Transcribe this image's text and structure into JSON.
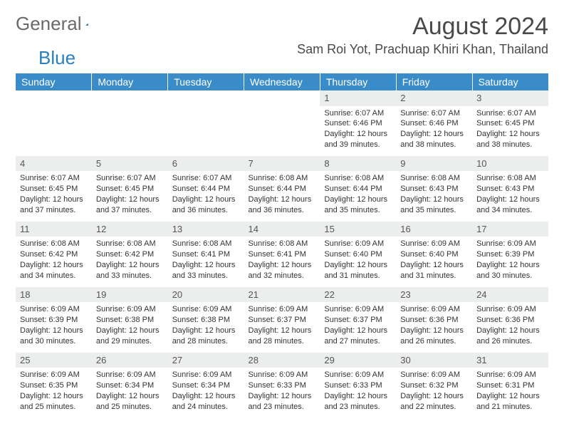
{
  "brand": {
    "part1": "General",
    "part2": "Blue",
    "text_color": "#6a6a6a",
    "accent_color": "#2a7fbf"
  },
  "title": "August 2024",
  "location": "Sam Roi Yot, Prachuap Khiri Khan, Thailand",
  "header_bg": "#3a8cc9",
  "daynum_bg": "#eceded",
  "weekdays": [
    "Sunday",
    "Monday",
    "Tuesday",
    "Wednesday",
    "Thursday",
    "Friday",
    "Saturday"
  ],
  "labels": {
    "sunrise": "Sunrise:",
    "sunset": "Sunset:",
    "daylight": "Daylight:"
  },
  "weeks": [
    [
      {
        "empty": true
      },
      {
        "empty": true
      },
      {
        "empty": true
      },
      {
        "empty": true
      },
      {
        "n": "1",
        "sunrise": "6:07 AM",
        "sunset": "6:46 PM",
        "daylight": "12 hours and 39 minutes."
      },
      {
        "n": "2",
        "sunrise": "6:07 AM",
        "sunset": "6:46 PM",
        "daylight": "12 hours and 38 minutes."
      },
      {
        "n": "3",
        "sunrise": "6:07 AM",
        "sunset": "6:45 PM",
        "daylight": "12 hours and 38 minutes."
      }
    ],
    [
      {
        "n": "4",
        "sunrise": "6:07 AM",
        "sunset": "6:45 PM",
        "daylight": "12 hours and 37 minutes."
      },
      {
        "n": "5",
        "sunrise": "6:07 AM",
        "sunset": "6:45 PM",
        "daylight": "12 hours and 37 minutes."
      },
      {
        "n": "6",
        "sunrise": "6:07 AM",
        "sunset": "6:44 PM",
        "daylight": "12 hours and 36 minutes."
      },
      {
        "n": "7",
        "sunrise": "6:08 AM",
        "sunset": "6:44 PM",
        "daylight": "12 hours and 36 minutes."
      },
      {
        "n": "8",
        "sunrise": "6:08 AM",
        "sunset": "6:44 PM",
        "daylight": "12 hours and 35 minutes."
      },
      {
        "n": "9",
        "sunrise": "6:08 AM",
        "sunset": "6:43 PM",
        "daylight": "12 hours and 35 minutes."
      },
      {
        "n": "10",
        "sunrise": "6:08 AM",
        "sunset": "6:43 PM",
        "daylight": "12 hours and 34 minutes."
      }
    ],
    [
      {
        "n": "11",
        "sunrise": "6:08 AM",
        "sunset": "6:42 PM",
        "daylight": "12 hours and 34 minutes."
      },
      {
        "n": "12",
        "sunrise": "6:08 AM",
        "sunset": "6:42 PM",
        "daylight": "12 hours and 33 minutes."
      },
      {
        "n": "13",
        "sunrise": "6:08 AM",
        "sunset": "6:41 PM",
        "daylight": "12 hours and 33 minutes."
      },
      {
        "n": "14",
        "sunrise": "6:08 AM",
        "sunset": "6:41 PM",
        "daylight": "12 hours and 32 minutes."
      },
      {
        "n": "15",
        "sunrise": "6:09 AM",
        "sunset": "6:40 PM",
        "daylight": "12 hours and 31 minutes."
      },
      {
        "n": "16",
        "sunrise": "6:09 AM",
        "sunset": "6:40 PM",
        "daylight": "12 hours and 31 minutes."
      },
      {
        "n": "17",
        "sunrise": "6:09 AM",
        "sunset": "6:39 PM",
        "daylight": "12 hours and 30 minutes."
      }
    ],
    [
      {
        "n": "18",
        "sunrise": "6:09 AM",
        "sunset": "6:39 PM",
        "daylight": "12 hours and 30 minutes."
      },
      {
        "n": "19",
        "sunrise": "6:09 AM",
        "sunset": "6:38 PM",
        "daylight": "12 hours and 29 minutes."
      },
      {
        "n": "20",
        "sunrise": "6:09 AM",
        "sunset": "6:38 PM",
        "daylight": "12 hours and 28 minutes."
      },
      {
        "n": "21",
        "sunrise": "6:09 AM",
        "sunset": "6:37 PM",
        "daylight": "12 hours and 28 minutes."
      },
      {
        "n": "22",
        "sunrise": "6:09 AM",
        "sunset": "6:37 PM",
        "daylight": "12 hours and 27 minutes."
      },
      {
        "n": "23",
        "sunrise": "6:09 AM",
        "sunset": "6:36 PM",
        "daylight": "12 hours and 26 minutes."
      },
      {
        "n": "24",
        "sunrise": "6:09 AM",
        "sunset": "6:36 PM",
        "daylight": "12 hours and 26 minutes."
      }
    ],
    [
      {
        "n": "25",
        "sunrise": "6:09 AM",
        "sunset": "6:35 PM",
        "daylight": "12 hours and 25 minutes."
      },
      {
        "n": "26",
        "sunrise": "6:09 AM",
        "sunset": "6:34 PM",
        "daylight": "12 hours and 25 minutes."
      },
      {
        "n": "27",
        "sunrise": "6:09 AM",
        "sunset": "6:34 PM",
        "daylight": "12 hours and 24 minutes."
      },
      {
        "n": "28",
        "sunrise": "6:09 AM",
        "sunset": "6:33 PM",
        "daylight": "12 hours and 23 minutes."
      },
      {
        "n": "29",
        "sunrise": "6:09 AM",
        "sunset": "6:33 PM",
        "daylight": "12 hours and 23 minutes."
      },
      {
        "n": "30",
        "sunrise": "6:09 AM",
        "sunset": "6:32 PM",
        "daylight": "12 hours and 22 minutes."
      },
      {
        "n": "31",
        "sunrise": "6:09 AM",
        "sunset": "6:31 PM",
        "daylight": "12 hours and 21 minutes."
      }
    ]
  ]
}
